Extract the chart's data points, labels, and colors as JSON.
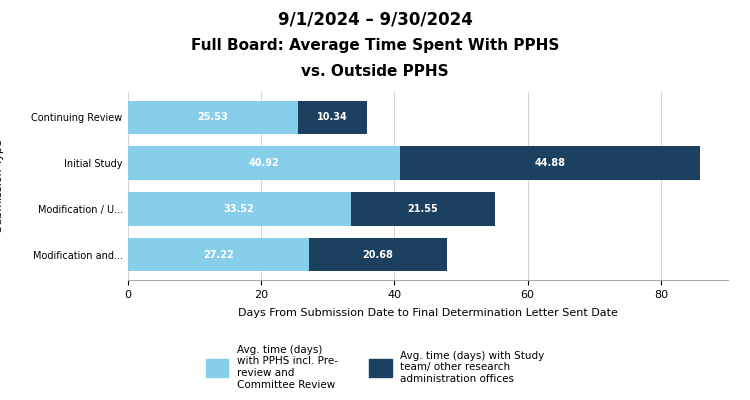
{
  "title_line1": "9/1/2024 – 9/30/2024",
  "title_line2": "Full Board: Average Time Spent With PPHS",
  "title_line3": "vs. Outside PPHS",
  "categories": [
    "Continuing Review",
    "Initial Study",
    "Modification / U...",
    "Modification and..."
  ],
  "pphs_values": [
    25.53,
    40.92,
    33.52,
    27.22
  ],
  "outside_values": [
    10.34,
    44.88,
    21.55,
    20.68
  ],
  "color_pphs": "#87CEEB",
  "color_outside": "#1C4060",
  "xlabel": "Days From Submission Date to Final Determination Letter Sent Date",
  "xlim": [
    0,
    90
  ],
  "xticks": [
    0,
    20,
    40,
    60,
    80
  ],
  "legend_pphs": "Avg. time (days)\nwith PPHS incl. Pre-\nreview and\nCommittee Review",
  "legend_outside": "Avg. time (days) with Study\nteam/ other research\nadministration offices",
  "bg_color": "#ffffff",
  "plot_bg_color": "#ffffff"
}
